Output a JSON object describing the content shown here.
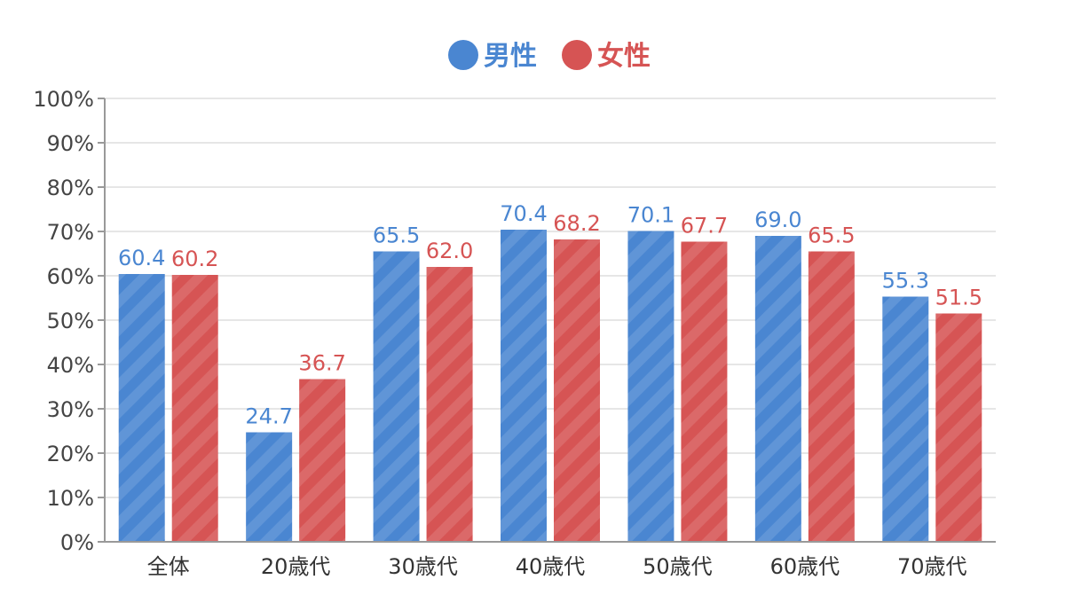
{
  "chart_data": {
    "type": "bar",
    "title": "",
    "xlabel": "",
    "ylabel": "",
    "categories": [
      "全体",
      "20歳代",
      "30歳代",
      "40歳代",
      "50歳代",
      "60歳代",
      "70歳代"
    ],
    "series": [
      {
        "name": "男性",
        "color": "#4a86d1",
        "values": [
          60.4,
          24.7,
          65.5,
          70.4,
          70.1,
          69.0,
          55.3
        ],
        "labels": [
          "60.4",
          "24.7",
          "65.5",
          "70.4",
          "70.1",
          "69.0",
          "55.3"
        ]
      },
      {
        "name": "女性",
        "color": "#d65454",
        "values": [
          60.2,
          36.7,
          62.0,
          68.2,
          67.7,
          65.5,
          51.5
        ],
        "labels": [
          "60.2",
          "36.7",
          "62.0",
          "68.2",
          "67.7",
          "65.5",
          "51.5"
        ]
      }
    ],
    "ylim": [
      0,
      100
    ],
    "yticks": [
      "0%",
      "10%",
      "20%",
      "30%",
      "40%",
      "50%",
      "60%",
      "70%",
      "80%",
      "90%",
      "100%"
    ],
    "grid": true,
    "legend_position": "top-center",
    "bar_pattern": "diagonal-stripes"
  }
}
